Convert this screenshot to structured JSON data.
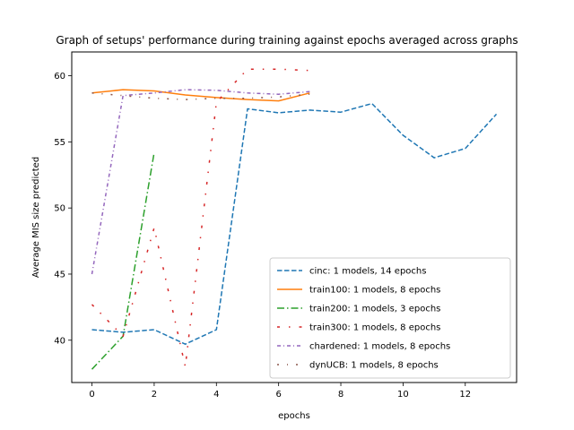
{
  "chart_data": {
    "type": "line",
    "title": "Graph of setups' performance during training against epochs averaged across graphs",
    "xlabel": "epochs",
    "ylabel": "Average MIS size predicted",
    "xlim": [
      -0.65,
      13.65
    ],
    "ylim": [
      36.8,
      61.8
    ],
    "xticks": [
      0,
      2,
      4,
      6,
      8,
      10,
      12
    ],
    "yticks": [
      40,
      45,
      50,
      55,
      60
    ],
    "grid": false,
    "legend_position": "lower right",
    "series": [
      {
        "name": "cinc: 1 models, 14 epochs",
        "color": "#1f77b4",
        "style": "dashed",
        "x": [
          0,
          1,
          2,
          3,
          4,
          5,
          6,
          7,
          8,
          9,
          10,
          11,
          12,
          13
        ],
        "y": [
          40.8,
          40.6,
          40.8,
          39.7,
          40.8,
          57.5,
          57.2,
          57.4,
          57.25,
          57.9,
          55.5,
          53.8,
          54.5,
          57.1
        ]
      },
      {
        "name": "train100: 1 models, 8 epochs",
        "color": "#ff7f0e",
        "style": "solid",
        "x": [
          0,
          1,
          2,
          3,
          4,
          5,
          6,
          7
        ],
        "y": [
          58.7,
          58.95,
          58.85,
          58.55,
          58.35,
          58.2,
          58.1,
          58.7
        ]
      },
      {
        "name": "train200: 1 models, 3 epochs",
        "color": "#2ca02c",
        "style": "dashdot",
        "x": [
          0,
          1,
          2
        ],
        "y": [
          37.8,
          40.3,
          54.2
        ]
      },
      {
        "name": "train300: 1 models, 8 epochs",
        "color": "#d62728",
        "style": "loosely-dashdotted",
        "x": [
          0,
          1,
          2,
          3,
          4,
          5,
          6,
          7
        ],
        "y": [
          42.7,
          40.3,
          48.5,
          38.0,
          58.0,
          60.5,
          60.5,
          60.4
        ]
      },
      {
        "name": "chardened: 1 models, 8 epochs",
        "color": "#9467bd",
        "style": "dense-dashdot",
        "x": [
          0,
          1,
          2,
          3,
          4,
          5,
          6,
          7
        ],
        "y": [
          45.0,
          58.5,
          58.7,
          58.95,
          58.9,
          58.7,
          58.6,
          58.8
        ]
      },
      {
        "name": "dynUCB: 1 models, 8 epochs",
        "color": "#8c564b",
        "style": "sparse-dashdot",
        "x": [
          0,
          1,
          2,
          3,
          4,
          5,
          6,
          7
        ],
        "y": [
          58.7,
          58.5,
          58.3,
          58.2,
          58.3,
          58.3,
          58.4,
          58.6
        ]
      }
    ]
  }
}
